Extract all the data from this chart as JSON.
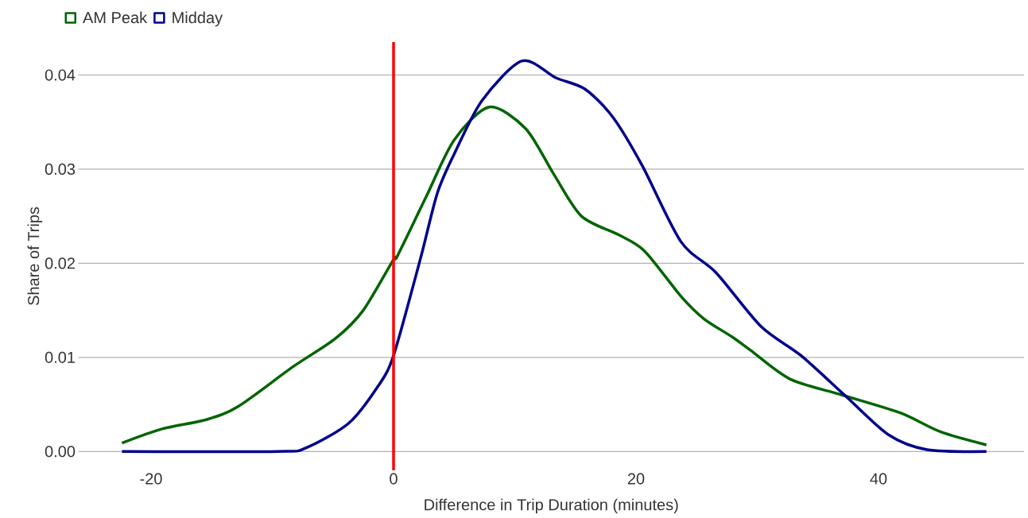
{
  "chart_data": {
    "type": "line",
    "xlabel": "Difference in Trip Duration (minutes)",
    "ylabel": "Share of Trips",
    "xlim": [
      -26,
      52
    ],
    "ylim": [
      -0.002,
      0.0435
    ],
    "xticks": [
      -20,
      0,
      20,
      40
    ],
    "yticks": [
      {
        "value": 0,
        "label": "0.00"
      },
      {
        "value": 0.01,
        "label": "0.01"
      },
      {
        "value": 0.02,
        "label": "0.02"
      },
      {
        "value": 0.03,
        "label": "0.03"
      },
      {
        "value": 0.04,
        "label": "0.04"
      }
    ],
    "grid": "y",
    "legend": "top left",
    "marker": "none",
    "line_style": "solid",
    "ref_lines": [
      {
        "axis": "x",
        "value": 0,
        "color": "#ff0000"
      }
    ],
    "series": [
      {
        "name": "AM Peak",
        "color": "#006400",
        "x": [
          -22.4,
          -19.1,
          -15.4,
          -12.8,
          -8.3,
          -4.8,
          -2.5,
          0,
          0.33,
          2.7,
          5.0,
          7.9,
          10.9,
          13.2,
          15.5,
          18.6,
          20.7,
          23.7,
          25.6,
          27.9,
          29.4,
          32.7,
          37.0,
          41.8,
          45.1,
          48.9
        ],
        "values": [
          0.0009,
          0.0024,
          0.0034,
          0.0048,
          0.009,
          0.012,
          0.015,
          0.0204,
          0.0208,
          0.0271,
          0.0331,
          0.0366,
          0.0343,
          0.0295,
          0.025,
          0.023,
          0.0213,
          0.0165,
          0.0141,
          0.0122,
          0.0108,
          0.0077,
          0.006,
          0.0041,
          0.0021,
          0.0007
        ]
      },
      {
        "name": "Midday",
        "color": "#00008b",
        "x": [
          -22.4,
          -9.5,
          -7.2,
          -3.7,
          -1.3,
          0,
          2.2,
          3.6,
          5.0,
          7.3,
          10.6,
          13.4,
          15.8,
          18.1,
          20.5,
          23.7,
          26.6,
          30.3,
          33.6,
          37.2,
          40.8,
          44.0,
          48.9
        ],
        "values": [
          0,
          0,
          0.0004,
          0.003,
          0.0069,
          0.0102,
          0.0204,
          0.0274,
          0.0316,
          0.0373,
          0.0415,
          0.0397,
          0.0385,
          0.0355,
          0.0304,
          0.0223,
          0.019,
          0.0133,
          0.0102,
          0.006,
          0.0018,
          0.0002,
          0
        ]
      }
    ]
  }
}
